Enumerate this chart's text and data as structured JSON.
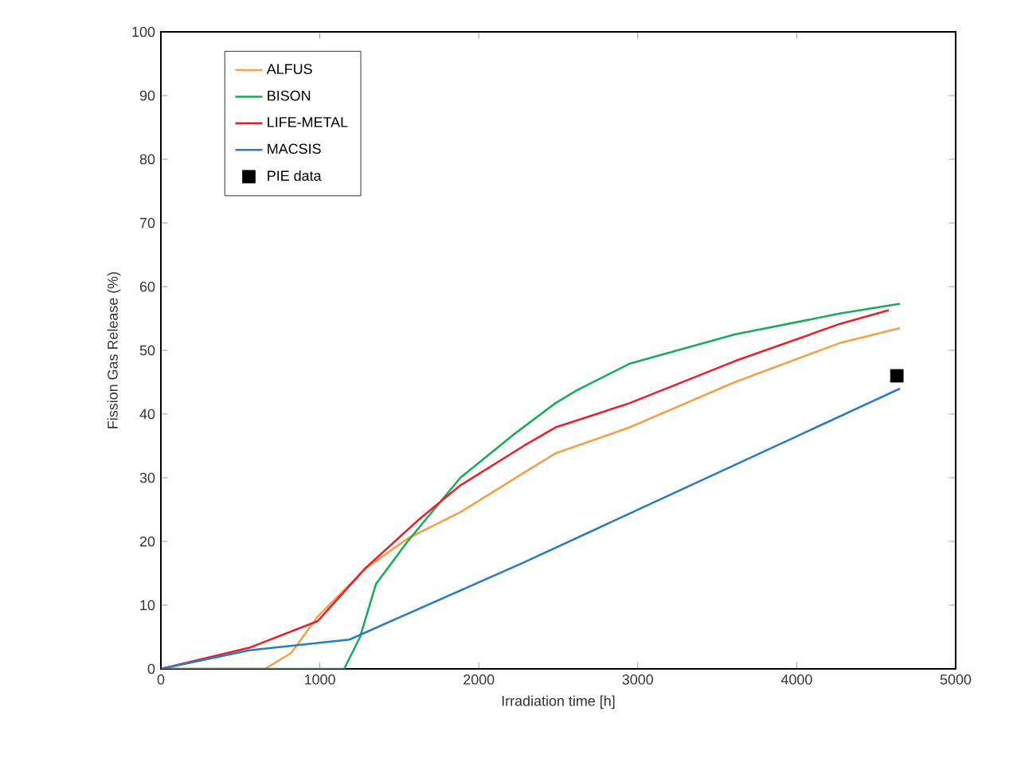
{
  "chart_data": {
    "type": "line",
    "xlabel": "Irradiation time [h]",
    "ylabel": "Fission Gas Release (%)",
    "xlim": [
      0,
      5000
    ],
    "xticks": [
      0,
      1000,
      2000,
      3000,
      4000,
      5000
    ],
    "ylim": [
      0,
      100
    ],
    "yticks": [
      0,
      10,
      20,
      30,
      40,
      50,
      60,
      70,
      80,
      90,
      100
    ],
    "grid": false,
    "legend": "top left",
    "marker": "none",
    "line_style": "solid",
    "series": [
      {
        "name": "ALFUS",
        "color": "#f4a04a",
        "x": [
          0,
          655,
          820,
          990,
          1290,
          1555,
          1885,
          2285,
          2480,
          2948,
          3610,
          4277,
          4650
        ],
        "values": [
          0,
          0,
          2.5,
          8.3,
          15.8,
          20.5,
          24.6,
          30.8,
          33.8,
          37.9,
          45,
          51.2,
          53.5
        ]
      },
      {
        "name": "BISON",
        "color": "#1aab5a",
        "x": [
          0,
          1153,
          1253,
          1353,
          1552,
          1884,
          2215,
          2482,
          2615,
          2948,
          3610,
          4277,
          4650
        ],
        "values": [
          0,
          0,
          5,
          13.3,
          20,
          30,
          36.7,
          41.7,
          43.7,
          47.9,
          52.5,
          55.8,
          57.3
        ]
      },
      {
        "name": "LIFE-METAL",
        "color": "#e8202a",
        "x": [
          0,
          555,
          987,
          1286,
          1617,
          1884,
          2283,
          2482,
          2948,
          3610,
          4277,
          4580
        ],
        "values": [
          0,
          3.3,
          7.5,
          15.8,
          23.3,
          28.8,
          35,
          37.9,
          41.7,
          48.3,
          54.2,
          56.3
        ]
      },
      {
        "name": "MACSIS",
        "color": "#2a7bc0",
        "x": [
          0,
          555,
          1186,
          2283,
          4650
        ],
        "values": [
          0,
          2.9,
          4.6,
          16.7,
          44
        ]
      },
      {
        "name": "PIE data",
        "type": "scatter",
        "marker": "square",
        "color": "#000000",
        "x": [
          4630
        ],
        "values": [
          46
        ]
      }
    ]
  }
}
